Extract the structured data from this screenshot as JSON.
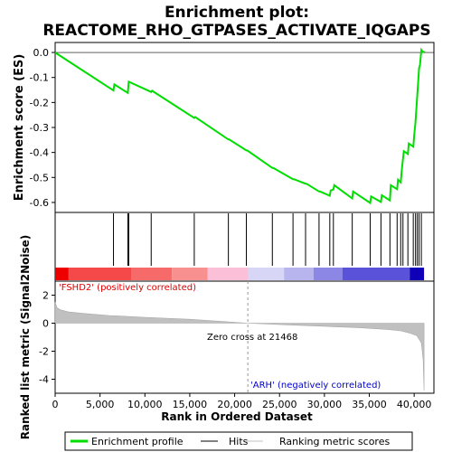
{
  "chart_data": {
    "type": "line",
    "title": "Enrichment plot:",
    "subtitle": "REACTOME_RHO_GTPASES_ACTIVATE_IQGAPS",
    "top_panel": {
      "ylabel": "Enrichment score (ES)",
      "ylim": [
        -0.64,
        0.04
      ],
      "yticks": [
        "0.0",
        "-0.1",
        "-0.2",
        "-0.3",
        "-0.4",
        "-0.5",
        "-0.6"
      ],
      "ytick_values": [
        0.0,
        -0.1,
        -0.2,
        -0.3,
        -0.4,
        -0.5,
        -0.6
      ],
      "series_name": "Enrichment profile",
      "color": "#00dd00",
      "x": [
        0,
        6500,
        6600,
        8100,
        8200,
        10700,
        10800,
        15500,
        15600,
        19300,
        19400,
        21300,
        21400,
        24200,
        24300,
        26500,
        26600,
        27900,
        28000,
        29400,
        29500,
        30600,
        30700,
        31000,
        31100,
        33100,
        33200,
        35100,
        35200,
        36300,
        36400,
        37300,
        37400,
        38100,
        38200,
        38500,
        38600,
        38750,
        38850,
        39300,
        39400,
        39900,
        40000,
        40150,
        40250,
        40350,
        40450,
        40550,
        40650,
        40800,
        40900,
        41200
      ],
      "y": [
        0.0,
        -0.152,
        -0.128,
        -0.162,
        -0.117,
        -0.158,
        -0.153,
        -0.262,
        -0.258,
        -0.348,
        -0.348,
        -0.392,
        -0.392,
        -0.462,
        -0.462,
        -0.507,
        -0.507,
        -0.525,
        -0.525,
        -0.556,
        -0.556,
        -0.573,
        -0.552,
        -0.548,
        -0.531,
        -0.584,
        -0.556,
        -0.602,
        -0.576,
        -0.598,
        -0.571,
        -0.592,
        -0.531,
        -0.547,
        -0.509,
        -0.52,
        -0.476,
        -0.428,
        -0.395,
        -0.406,
        -0.364,
        -0.377,
        -0.331,
        -0.279,
        -0.225,
        -0.17,
        -0.118,
        -0.062,
        -0.05,
        0.01,
        0.005,
        0.0
      ]
    },
    "hits": [
      6500,
      8100,
      8200,
      10700,
      15500,
      19300,
      21300,
      24200,
      26500,
      27900,
      29400,
      30600,
      31000,
      33100,
      35100,
      36300,
      37300,
      38100,
      38500,
      38750,
      39300,
      39900,
      40150,
      40350,
      40550,
      40800
    ],
    "bottom_panel": {
      "ylabel": "Ranked list metric (Signal2Noise)",
      "ylim": [
        -5,
        3
      ],
      "yticks": [
        "2",
        "0",
        "-2",
        "-4"
      ],
      "ytick_values": [
        2,
        0,
        -2,
        -4
      ],
      "zero_cross_label": "Zero cross at 21468",
      "zero_cross": 21468,
      "pos_label": "'FSHD2' (positively correlated)",
      "neg_label": "'ARH' (negatively correlated)",
      "metric_x": [
        0,
        200,
        600,
        1500,
        3000,
        6000,
        10000,
        15000,
        21468,
        26000,
        30000,
        34000,
        37000,
        38500,
        39500,
        40300,
        40800,
        41000,
        41100
      ],
      "metric_y": [
        1.5,
        1.1,
        0.95,
        0.8,
        0.7,
        0.55,
        0.42,
        0.28,
        0.0,
        -0.12,
        -0.22,
        -0.33,
        -0.45,
        -0.55,
        -0.7,
        -0.9,
        -1.4,
        -2.6,
        -4.8
      ]
    },
    "xlabel": "Rank in Ordered Dataset",
    "xlim": [
      0,
      42200
    ],
    "xticks": [
      "0",
      "5,000",
      "10,000",
      "15,000",
      "20,000",
      "25,000",
      "30,000",
      "35,000",
      "40,000"
    ],
    "xtick_values": [
      0,
      5000,
      10000,
      15000,
      20000,
      25000,
      30000,
      35000,
      40000
    ],
    "legend": [
      "Enrichment profile",
      "Hits",
      "Ranking metric scores"
    ],
    "legend_position": "bottom",
    "colors": {
      "profile": "#00dd00",
      "hits": "#000000",
      "metric_fill": "#c0c0c0",
      "pos_text": "#dd0000",
      "neg_text": "#0000cc",
      "frame": "#000000"
    },
    "heat_bar": [
      {
        "from": 0,
        "to": 1500,
        "color": "#ee0000"
      },
      {
        "from": 1500,
        "to": 8500,
        "color": "#f54848"
      },
      {
        "from": 8500,
        "to": 13000,
        "color": "#f76a6a"
      },
      {
        "from": 13000,
        "to": 17000,
        "color": "#f99090"
      },
      {
        "from": 17000,
        "to": 21500,
        "color": "#fbc0d8"
      },
      {
        "from": 21500,
        "to": 25500,
        "color": "#d8d6f6"
      },
      {
        "from": 25500,
        "to": 28800,
        "color": "#b8b4ee"
      },
      {
        "from": 28800,
        "to": 32000,
        "color": "#8c86e4"
      },
      {
        "from": 32000,
        "to": 39500,
        "color": "#5a52d8"
      },
      {
        "from": 39500,
        "to": 41100,
        "color": "#0f00b8"
      }
    ]
  }
}
